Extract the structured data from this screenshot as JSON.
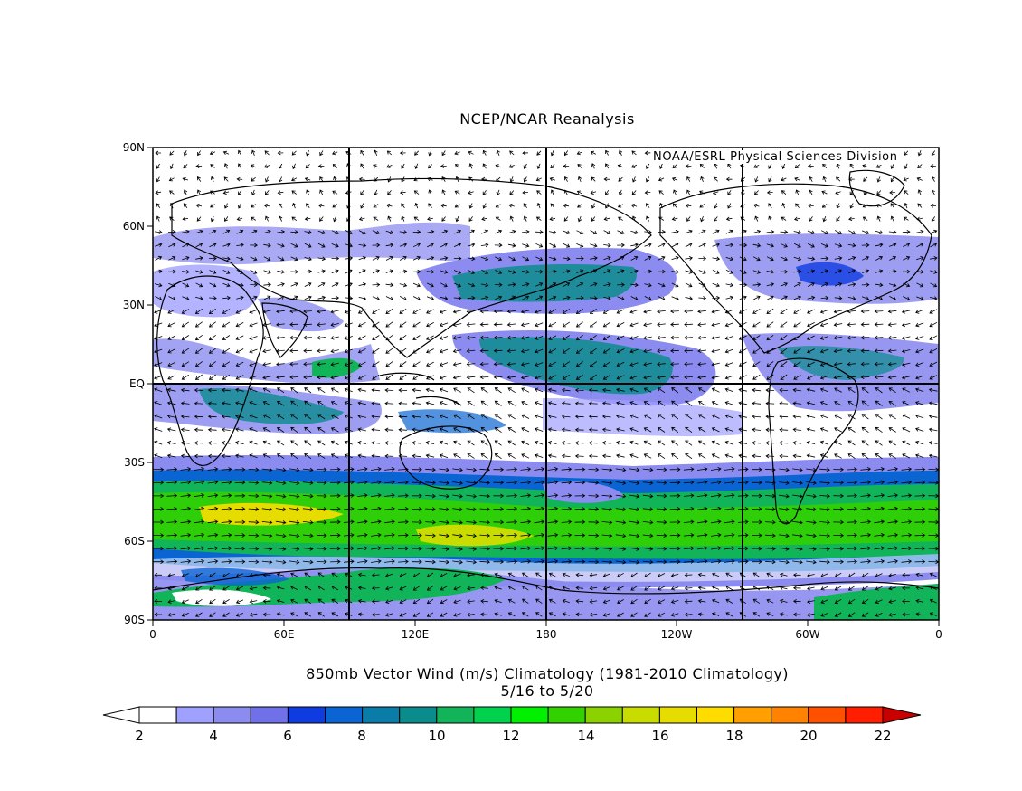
{
  "title": "NCEP/NCAR Reanalysis",
  "credit": "NOAA/ESRL Physical Sciences Division",
  "caption_line1": "850mb Vector Wind (m/s) Climatology (1981-2010 Climatology)",
  "caption_line2": "5/16  to 5/20",
  "map": {
    "lon_ticks": [
      "0",
      "60E",
      "120E",
      "180",
      "120W",
      "60W",
      "0"
    ],
    "lat_ticks": [
      "90N",
      "60N",
      "30N",
      "EQ",
      "30S",
      "60S",
      "90S"
    ],
    "lon_grid_lines": [
      "90E",
      "180",
      "90W"
    ],
    "lat_grid_lines": [
      "EQ"
    ]
  },
  "colorbar": {
    "labels": [
      "2",
      "4",
      "6",
      "8",
      "10",
      "12",
      "14",
      "16",
      "18",
      "20",
      "22"
    ],
    "colors": [
      "#ffffff",
      "#a0a0ff",
      "#8c8cf0",
      "#7070e8",
      "#0f3ce0",
      "#0a64d2",
      "#0a7ca8",
      "#0a8c8c",
      "#12b45a",
      "#00d24e",
      "#00f000",
      "#32d200",
      "#8cd200",
      "#c8dc00",
      "#e6dc00",
      "#ffdc00",
      "#ffa000",
      "#ff8200",
      "#ff5000",
      "#ff1e00"
    ],
    "low_arrow_color": "#ffffff",
    "high_arrow_color": "#c80000"
  }
}
